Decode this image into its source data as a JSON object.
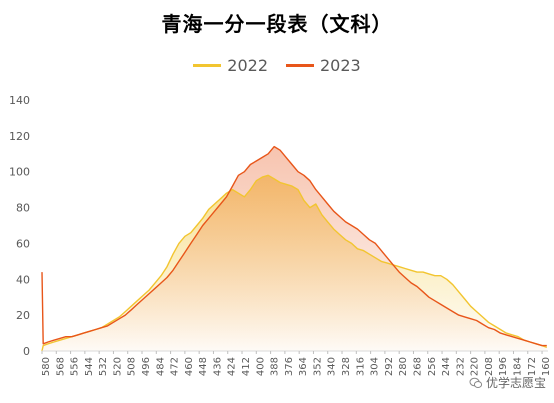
{
  "chart_data": {
    "type": "line",
    "title": "青海一分一段表（文科）",
    "xlabel": "",
    "ylabel": "",
    "ylim": [
      0,
      140
    ],
    "y_ticks": [
      "0",
      "20",
      "40",
      "60",
      "80",
      "100",
      "120",
      "140"
    ],
    "x_tick_labels": [
      "580",
      "568",
      "556",
      "544",
      "532",
      "520",
      "508",
      "496",
      "484",
      "472",
      "460",
      "448",
      "436",
      "424",
      "412",
      "400",
      "388",
      "376",
      "364",
      "352",
      "340",
      "328",
      "316",
      "304",
      "292",
      "280",
      "268",
      "256",
      "244",
      "232",
      "220",
      "208",
      "196",
      "184",
      "172",
      "160"
    ],
    "x_range": [
      580,
      155
    ],
    "legend_position": "top",
    "grid": false,
    "series": [
      {
        "name": "2022",
        "color": "#F2C530",
        "x": [
          580,
          579,
          575,
          570,
          565,
          560,
          555,
          550,
          545,
          540,
          535,
          530,
          525,
          520,
          515,
          510,
          505,
          500,
          495,
          490,
          485,
          480,
          475,
          470,
          465,
          460,
          455,
          450,
          445,
          440,
          435,
          430,
          425,
          420,
          415,
          410,
          405,
          400,
          395,
          390,
          385,
          380,
          375,
          370,
          365,
          360,
          355,
          350,
          345,
          340,
          335,
          330,
          325,
          320,
          315,
          310,
          305,
          300,
          295,
          290,
          285,
          280,
          275,
          270,
          265,
          260,
          255,
          250,
          245,
          240,
          235,
          230,
          225,
          220,
          215,
          210,
          205,
          200,
          195,
          190,
          185,
          180,
          175,
          170,
          165,
          160,
          156
        ],
        "values": [
          0,
          3,
          4,
          5,
          6,
          7,
          8,
          9,
          10,
          11,
          12,
          13,
          15,
          17,
          19,
          22,
          25,
          28,
          31,
          34,
          38,
          42,
          47,
          54,
          60,
          64,
          66,
          70,
          74,
          79,
          82,
          85,
          88,
          90,
          88,
          86,
          90,
          95,
          97,
          98,
          96,
          94,
          93,
          92,
          90,
          84,
          80,
          82,
          76,
          72,
          68,
          65,
          62,
          60,
          57,
          56,
          54,
          52,
          50,
          49,
          48,
          47,
          46,
          45,
          44,
          44,
          43,
          42,
          42,
          40,
          37,
          33,
          29,
          25,
          22,
          19,
          16,
          14,
          12,
          10,
          9,
          8,
          6,
          5,
          4,
          3,
          2
        ]
      },
      {
        "name": "2023",
        "color": "#E8561A",
        "x": [
          580,
          579,
          575,
          570,
          565,
          560,
          555,
          550,
          545,
          540,
          535,
          530,
          525,
          520,
          515,
          510,
          505,
          500,
          495,
          490,
          485,
          480,
          475,
          470,
          465,
          460,
          455,
          450,
          445,
          440,
          435,
          430,
          425,
          420,
          415,
          410,
          405,
          400,
          395,
          390,
          385,
          380,
          375,
          370,
          365,
          360,
          355,
          350,
          345,
          340,
          335,
          330,
          325,
          320,
          315,
          310,
          305,
          300,
          295,
          290,
          285,
          280,
          275,
          270,
          265,
          260,
          255,
          250,
          245,
          240,
          235,
          230,
          225,
          220,
          215,
          210,
          205,
          200,
          195,
          190,
          185,
          180,
          175,
          170,
          165,
          160,
          156
        ],
        "values": [
          44,
          4,
          5,
          6,
          7,
          8,
          8,
          9,
          10,
          11,
          12,
          13,
          14,
          16,
          18,
          20,
          23,
          26,
          29,
          32,
          35,
          38,
          41,
          45,
          50,
          55,
          60,
          65,
          70,
          74,
          78,
          82,
          86,
          92,
          98,
          100,
          104,
          106,
          108,
          110,
          114,
          112,
          108,
          104,
          100,
          98,
          95,
          90,
          86,
          82,
          78,
          75,
          72,
          70,
          68,
          65,
          62,
          60,
          56,
          52,
          48,
          44,
          41,
          38,
          36,
          33,
          30,
          28,
          26,
          24,
          22,
          20,
          19,
          18,
          17,
          15,
          13,
          12,
          10,
          9,
          8,
          7,
          6,
          5,
          4,
          3,
          3
        ]
      }
    ]
  },
  "watermark": {
    "text": "优学志愿宝",
    "icon": "wechat-icon"
  }
}
